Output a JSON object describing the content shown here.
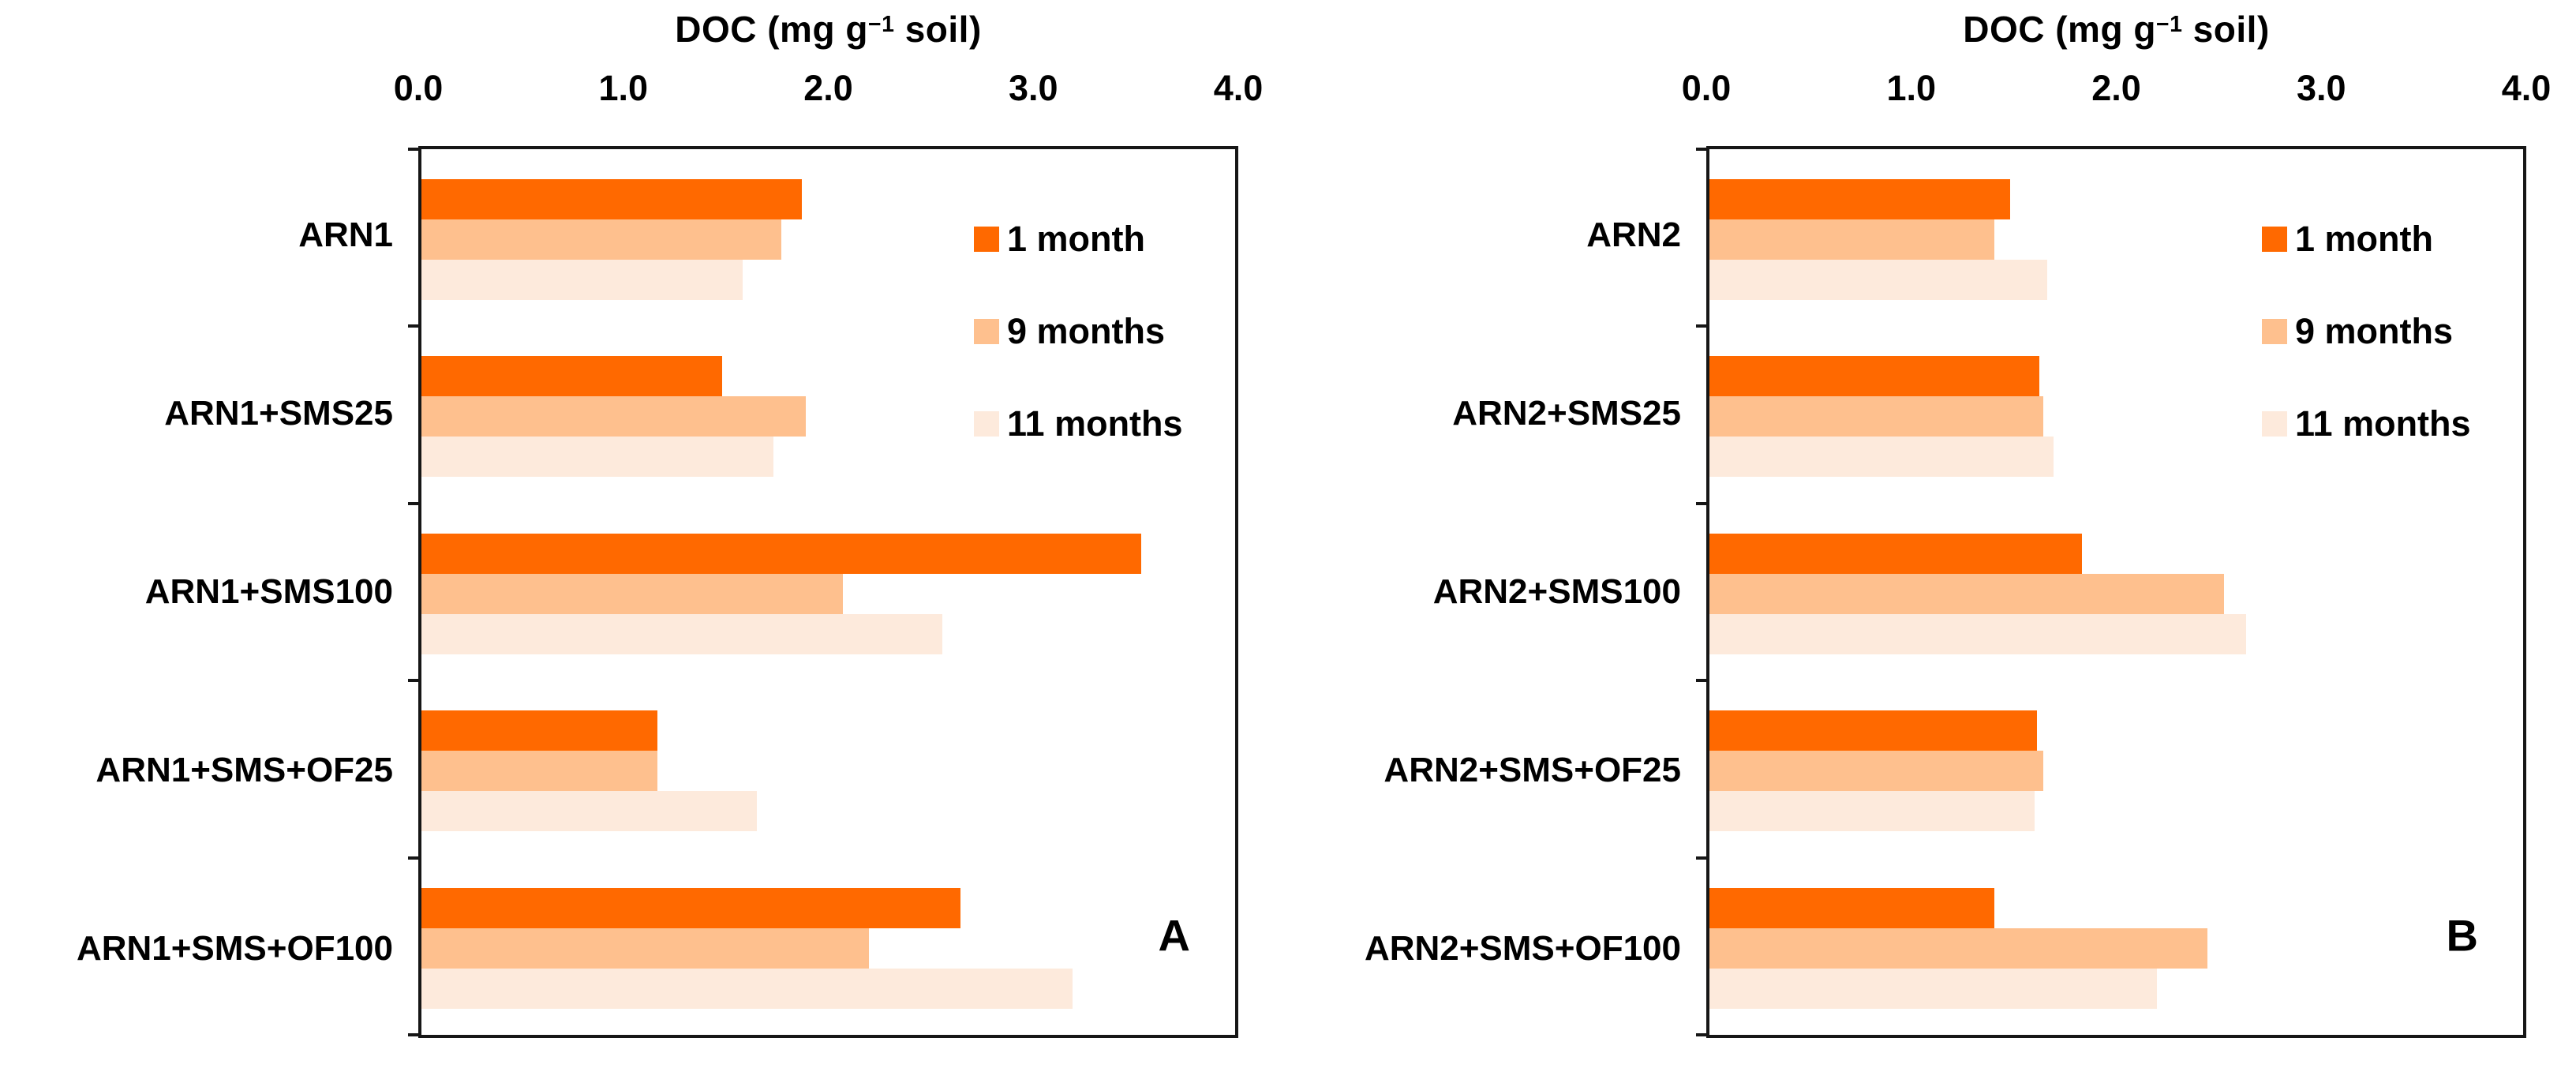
{
  "figure": {
    "background": "#ffffff",
    "text_color": "#000000",
    "border_color": "#161616"
  },
  "chart_data": [
    {
      "type": "bar",
      "orientation": "horizontal",
      "panel_label": "A",
      "axis_title": {
        "pre": "DOC (mg g",
        "sup": "−1",
        "post": " soil)"
      },
      "xlim": [
        0.0,
        4.0
      ],
      "xticks": [
        "0.0",
        "1.0",
        "2.0",
        "3.0",
        "4.0"
      ],
      "grid": false,
      "legend_position": "inside-top-right",
      "categories": [
        "ARN1",
        "ARN1+SMS25",
        "ARN1+SMS100",
        "ARN1+SMS+OF25",
        "ARN1+SMS+OF100"
      ],
      "series": [
        {
          "name": "1 month",
          "color": "#FF6900",
          "values": [
            1.87,
            1.48,
            3.54,
            1.16,
            2.65
          ]
        },
        {
          "name": "9 months",
          "color": "#FEC08E",
          "values": [
            1.77,
            1.89,
            2.07,
            1.16,
            2.2
          ]
        },
        {
          "name": "11 months",
          "color": "#FDEADC",
          "values": [
            1.58,
            1.73,
            2.56,
            1.65,
            3.2
          ]
        }
      ]
    },
    {
      "type": "bar",
      "orientation": "horizontal",
      "panel_label": "B",
      "axis_title": {
        "pre": "DOC (mg g",
        "sup": "−1",
        "post": " soil)"
      },
      "xlim": [
        0.0,
        4.0
      ],
      "xticks": [
        "0.0",
        "1.0",
        "2.0",
        "3.0",
        "4.0"
      ],
      "grid": false,
      "legend_position": "inside-top-right",
      "categories": [
        "ARN2",
        "ARN2+SMS25",
        "ARN2+SMS100",
        "ARN2+SMS+OF25",
        "ARN2+SMS+OF100"
      ],
      "series": [
        {
          "name": "1 month",
          "color": "#FF6900",
          "values": [
            1.48,
            1.62,
            1.83,
            1.61,
            1.4
          ]
        },
        {
          "name": "9 months",
          "color": "#FEC08E",
          "values": [
            1.4,
            1.64,
            2.53,
            1.64,
            2.45
          ]
        },
        {
          "name": "11 months",
          "color": "#FDEADC",
          "values": [
            1.66,
            1.69,
            2.64,
            1.6,
            2.2
          ]
        }
      ]
    }
  ]
}
